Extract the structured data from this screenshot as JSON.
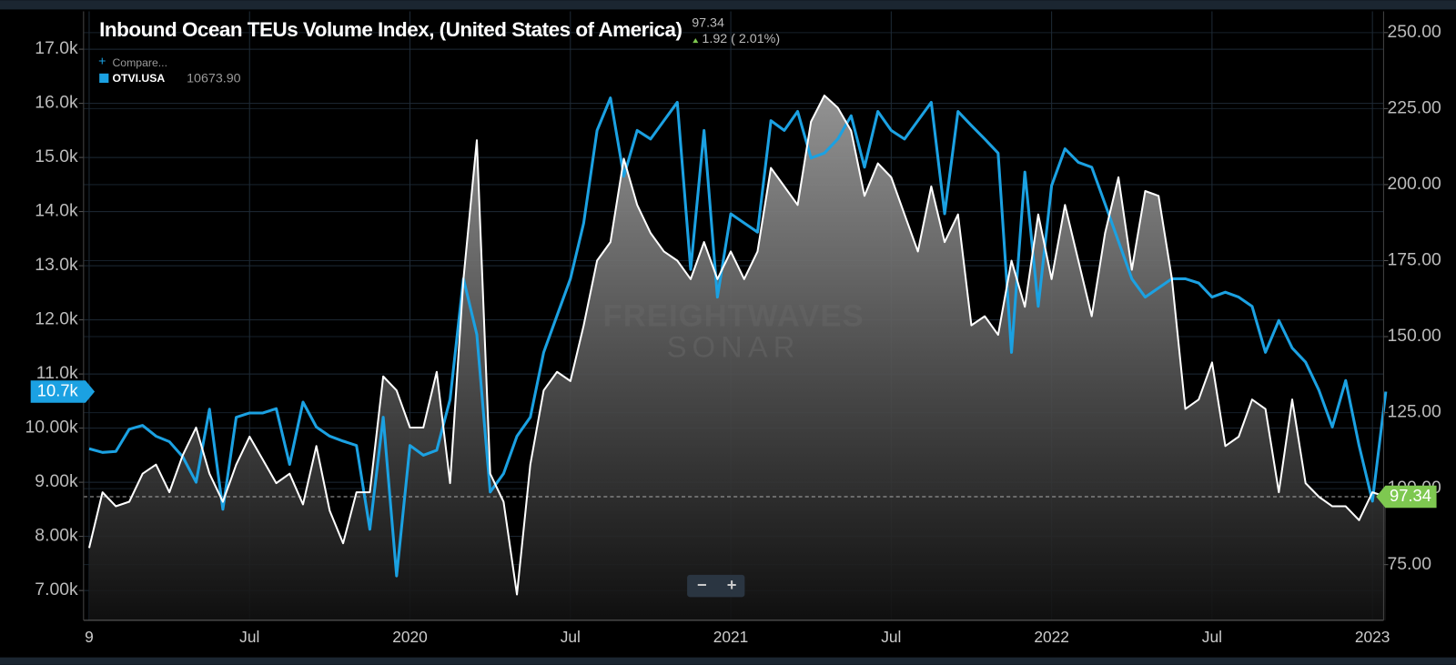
{
  "chart_data": {
    "type": "line",
    "title": "Inbound Ocean TEUs Volume Index, (United States of America)",
    "header_value": "97.34",
    "header_change": "1.92 ( 2.01%)",
    "compare_label": "Compare...",
    "legend_value": "10673.90",
    "watermark": [
      "FREIGHTWAVES",
      "SONAR"
    ],
    "zoom_buttons": [
      "−",
      "+"
    ],
    "last_labels": {
      "y": "10.7k",
      "y2": "97.34"
    },
    "categories": [
      "9",
      null,
      null,
      null,
      null,
      null,
      null,
      null,
      null,
      null,
      null,
      null,
      "Jul",
      null,
      null,
      null,
      null,
      null,
      null,
      null,
      null,
      null,
      null,
      null,
      "2020",
      null,
      null,
      null,
      null,
      null,
      null,
      null,
      null,
      null,
      null,
      null,
      "Jul",
      null,
      null,
      null,
      null,
      null,
      null,
      null,
      null,
      null,
      null,
      null,
      "2021",
      null,
      null,
      null,
      null,
      null,
      null,
      null,
      null,
      null,
      null,
      null,
      "Jul",
      null,
      null,
      null,
      null,
      null,
      null,
      null,
      null,
      null,
      null,
      null,
      "2022",
      null,
      null,
      null,
      null,
      null,
      null,
      null,
      null,
      null,
      null,
      null,
      "Jul",
      null,
      null,
      null,
      null,
      null,
      null,
      null,
      null,
      null,
      null,
      null,
      "2023",
      null
    ],
    "series": [
      {
        "name": "OTVI.USA",
        "color": "#1ba1e2",
        "axis": "y",
        "values": [
          9620,
          9550,
          9570,
          9980,
          10050,
          9850,
          9750,
          9470,
          9000,
          10350,
          8500,
          10200,
          10280,
          10280,
          10360,
          9330,
          10480,
          10020,
          9850,
          9760,
          9680,
          8130,
          10200,
          7270,
          9680,
          9500,
          9590,
          10530,
          12760,
          11730,
          8820,
          9160,
          9850,
          10200,
          11400,
          12080,
          12760,
          13790,
          15500,
          16100,
          14650,
          15500,
          15340,
          15680,
          16020,
          12930,
          15500,
          12420,
          13960,
          13790,
          13620,
          15680,
          15500,
          15850,
          14990,
          15080,
          15340,
          15770,
          14820,
          15850,
          15500,
          15340,
          15680,
          16020,
          13960,
          15850,
          15590,
          15340,
          15080,
          11400,
          14730,
          12250,
          14480,
          15160,
          14910,
          14820,
          14140,
          13450,
          12760,
          12420,
          12590,
          12760,
          12760,
          12680,
          12420,
          12510,
          12420,
          12250,
          11400,
          11990,
          11480,
          11220,
          10700,
          10020,
          10880,
          9680,
          8650,
          10673.9
        ]
      },
      {
        "color": "#ffffff",
        "axis": "y2",
        "values": [
          80.5,
          98.8,
          94.2,
          95.7,
          104.9,
          107.9,
          98.8,
          111,
          120.1,
          104.9,
          95.7,
          107.9,
          117.1,
          109.5,
          101.8,
          104.9,
          94.8,
          114,
          92.7,
          82,
          98.8,
          98.8,
          136.9,
          132.3,
          120.1,
          120.1,
          138.4,
          101.8,
          168.9,
          214.6,
          104.9,
          95.7,
          65.2,
          107.9,
          132.3,
          138.4,
          135.4,
          153.7,
          175,
          181.1,
          208.5,
          193.3,
          184.1,
          178,
          175,
          168.9,
          181.1,
          168.9,
          178,
          168.9,
          178,
          205.5,
          199.4,
          193.3,
          220.7,
          229.3,
          225.3,
          217.7,
          196.3,
          207,
          202.4,
          190.2,
          178,
          199.4,
          181.1,
          190.2,
          153.7,
          156.7,
          150.6,
          175,
          159.8,
          190.2,
          168.9,
          193.3,
          175,
          156.7,
          184.1,
          202.4,
          172,
          197.9,
          196.3,
          168.9,
          126.2,
          129.3,
          141.5,
          114,
          117.1,
          129.3,
          126.2,
          98.8,
          129.3,
          101.8,
          97.3,
          94.2,
          94.2,
          89.6,
          98.8,
          97.34
        ]
      }
    ],
    "ylim": [
      6450,
      17700
    ],
    "yticks": [
      {
        "value": 7000,
        "label": "7.00k"
      },
      {
        "value": 8000,
        "label": "8.00k"
      },
      {
        "value": 9000,
        "label": "9.00k"
      },
      {
        "value": 10000,
        "label": "10.00k"
      },
      {
        "value": 11000,
        "label": "11.0k"
      },
      {
        "value": 12000,
        "label": "12.0k"
      },
      {
        "value": 13000,
        "label": "13.0k"
      },
      {
        "value": 14000,
        "label": "14.0k"
      },
      {
        "value": 15000,
        "label": "15.0k"
      },
      {
        "value": 16000,
        "label": "16.0k"
      },
      {
        "value": 17000,
        "label": "17.0k"
      }
    ],
    "y2lim": [
      56.7,
      257
    ],
    "y2ticks": [
      {
        "value": 75,
        "label": "75.00"
      },
      {
        "value": 100,
        "label": "100.00"
      },
      {
        "value": 125,
        "label": "125.00"
      },
      {
        "value": 150,
        "label": "150.00"
      },
      {
        "value": 175,
        "label": "175.00"
      },
      {
        "value": 200,
        "label": "200.00"
      },
      {
        "value": 225,
        "label": "225.00"
      },
      {
        "value": 250,
        "label": "250.00"
      }
    ],
    "grid": true
  }
}
